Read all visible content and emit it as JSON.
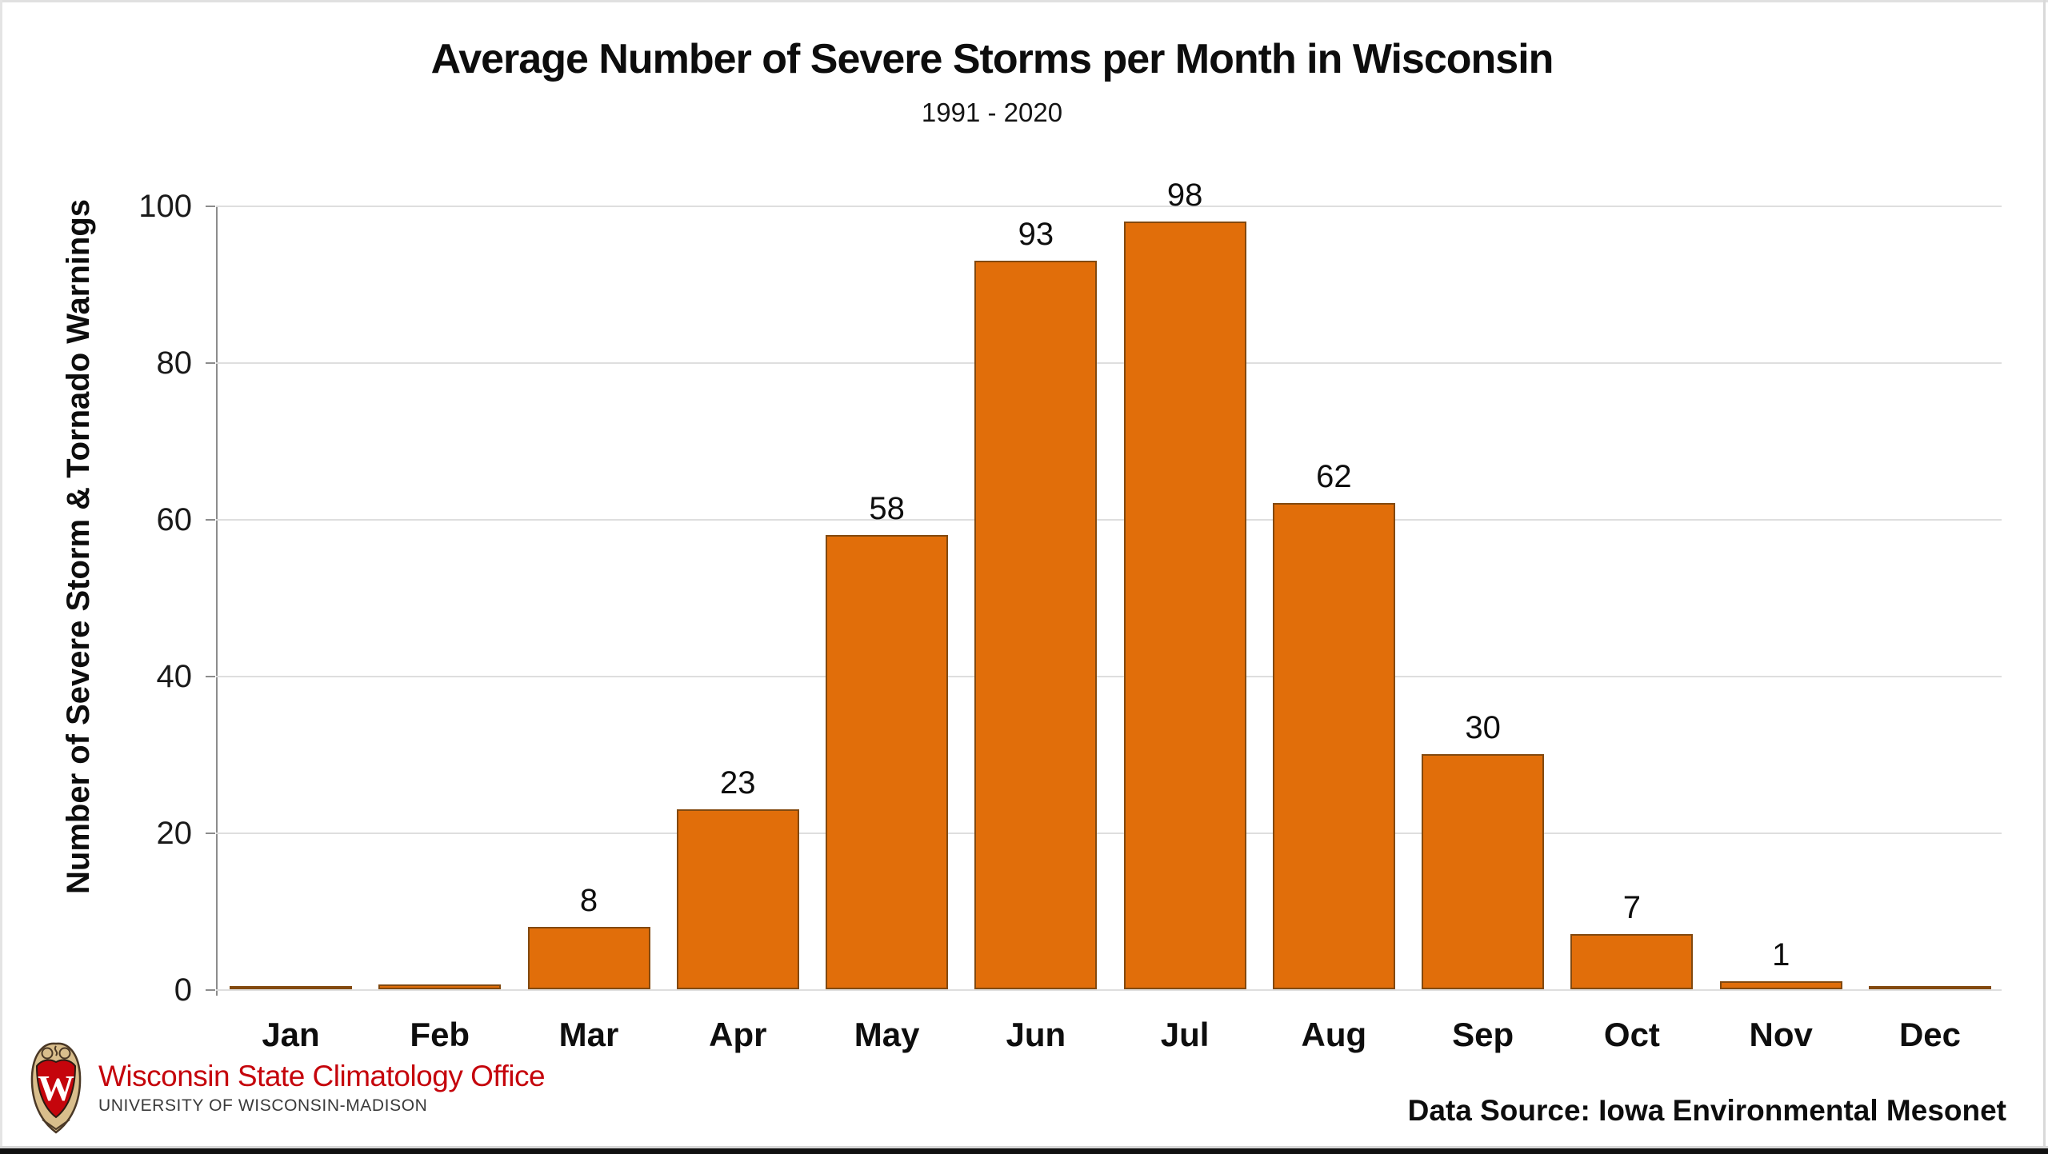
{
  "page": {
    "title": "Average Number of Severe Storms per Month in Wisconsin",
    "subtitle": "1991 - 2020"
  },
  "chart_data": {
    "type": "bar",
    "title": "Average Number of Severe Storms per Month in Wisconsin",
    "subtitle": "1991 - 2020",
    "categories": [
      "Jan",
      "Feb",
      "Mar",
      "Apr",
      "May",
      "Jun",
      "Jul",
      "Aug",
      "Sep",
      "Oct",
      "Nov",
      "Dec"
    ],
    "values": [
      0.4,
      0.6,
      8,
      23,
      58,
      93,
      98,
      62,
      30,
      7,
      1,
      0.2
    ],
    "bar_labels": [
      "",
      "",
      "8",
      "23",
      "58",
      "93",
      "98",
      "62",
      "30",
      "7",
      "1",
      ""
    ],
    "xlabel": "",
    "ylabel": "Number of Severe Storm & Tornado Warnings",
    "yticks": [
      0,
      20,
      40,
      60,
      80,
      100
    ],
    "ylim": [
      0,
      100
    ],
    "grid": "horizontal-light-gray",
    "legend": "none",
    "bar_color": "#E16E0A",
    "bar_border_color": "#82490F"
  },
  "footer": {
    "logo": "uw-crest-icon",
    "org_name": "Wisconsin State Climatology Office",
    "org_sub": "UNIVERSITY OF WISCONSIN-MADISON",
    "org_color": "#C5050C",
    "data_source": "Data Source: Iowa Environmental Mesonet"
  }
}
